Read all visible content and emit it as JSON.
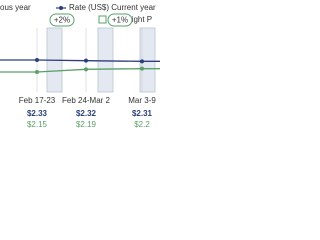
{
  "chart_data": {
    "type": "line",
    "categories": [
      "Feb 17-23",
      "Feb 24-Mar 2",
      "Mar 3-9"
    ],
    "series": [
      {
        "name": "Rate (US$) Current year",
        "color": "#2b3f7a",
        "values": [
          2.33,
          2.32,
          2.31
        ],
        "value_labels": [
          "$2.33",
          "$2.32",
          "$2.31"
        ]
      },
      {
        "name": "ous year",
        "color": "#5aa06a",
        "values": [
          2.15,
          2.19,
          2.2
        ],
        "value_labels": [
          "$2.15",
          "$2.19",
          "$2.2"
        ]
      }
    ],
    "bar_legend": "Ch.weight P",
    "badges": [
      "+2%",
      "+1%"
    ]
  }
}
